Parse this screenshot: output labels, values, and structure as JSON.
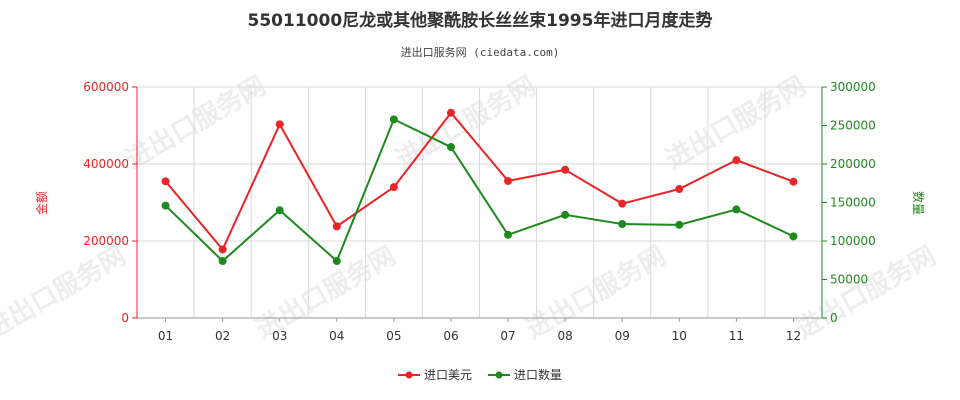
{
  "chart_data": {
    "type": "line",
    "title": "55011000尼龙或其他聚酰胺长丝丝束1995年进口月度走势",
    "subtitle": "进出口服务网 (ciedata.com)",
    "watermark": "进出口服务网",
    "categories": [
      "01",
      "02",
      "03",
      "04",
      "05",
      "06",
      "07",
      "08",
      "09",
      "10",
      "11",
      "12"
    ],
    "y_left": {
      "label": "金额",
      "ticks": [
        "0",
        "200000",
        "400000",
        "600000"
      ],
      "range": [
        0,
        600000
      ]
    },
    "y_right": {
      "label": "数量",
      "ticks": [
        "0",
        "50000",
        "100000",
        "150000",
        "200000",
        "250000",
        "300000"
      ],
      "range": [
        0,
        300000
      ]
    },
    "series": [
      {
        "name": "进口美元",
        "axis": "left",
        "color": "#e8262a",
        "values": [
          355000,
          178000,
          503000,
          238000,
          340000,
          533000,
          356000,
          385000,
          297000,
          335000,
          410000,
          354000
        ]
      },
      {
        "name": "进口数量",
        "axis": "right",
        "color": "#1e8a1e",
        "values": [
          146000,
          74000,
          140000,
          74000,
          258000,
          222000,
          108000,
          134000,
          122000,
          121000,
          141000,
          106000
        ]
      }
    ],
    "grid": true,
    "legend_position": "bottom-center"
  }
}
